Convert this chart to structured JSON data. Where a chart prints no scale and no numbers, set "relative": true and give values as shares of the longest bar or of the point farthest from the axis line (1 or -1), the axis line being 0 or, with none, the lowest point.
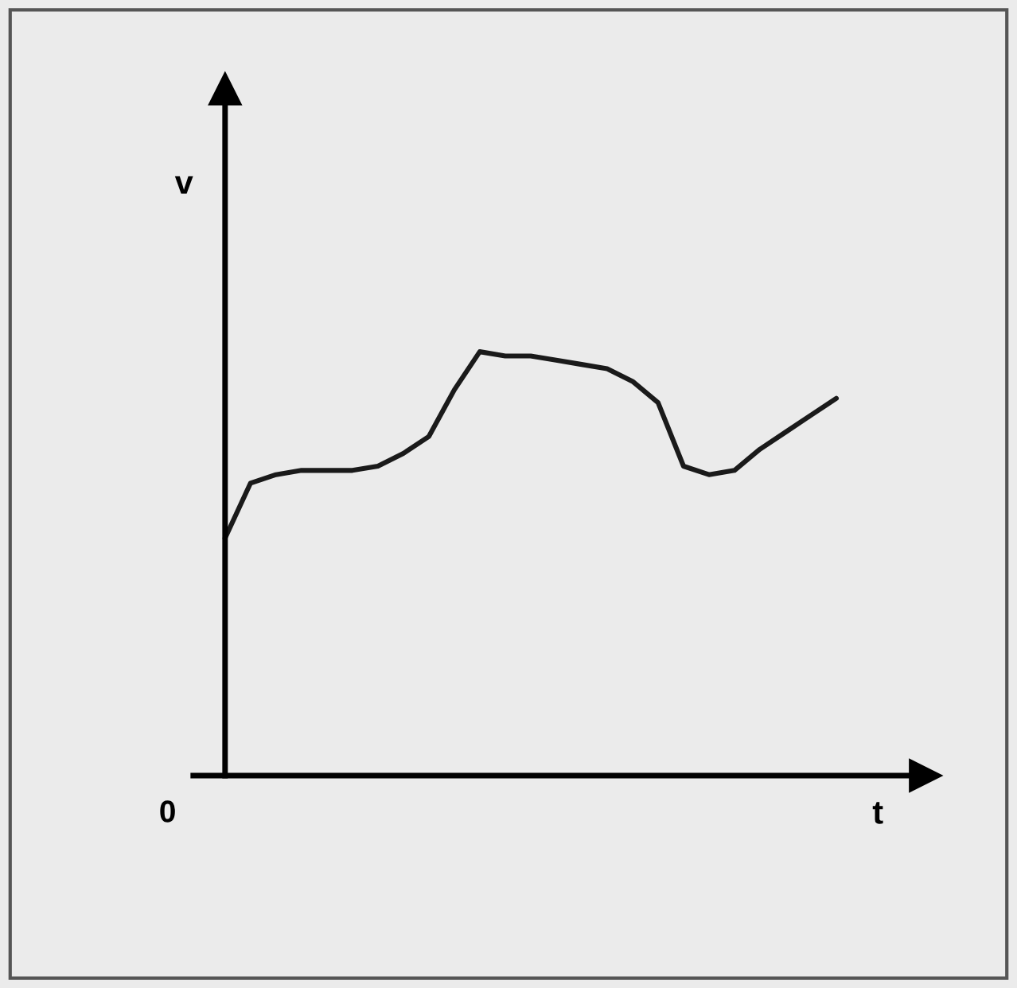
{
  "chart_data": {
    "type": "line",
    "relative": true,
    "xlabel": "t",
    "ylabel": "v",
    "annotations": [
      "0"
    ],
    "categories": [
      null,
      null,
      null,
      null,
      null,
      null,
      null,
      null,
      null,
      null,
      null,
      null,
      null,
      null,
      null,
      null,
      null,
      null,
      null,
      null,
      null,
      null,
      null,
      null,
      null
    ],
    "series": [
      {
        "color": "#1a1a1a",
        "values": [
          0.56,
          0.69,
          0.71,
          0.72,
          0.72,
          0.72,
          0.73,
          0.76,
          0.8,
          0.91,
          1.0,
          0.99,
          0.99,
          0.98,
          0.97,
          0.96,
          0.93,
          0.88,
          0.73,
          0.71,
          0.72,
          0.77,
          0.81,
          0.85,
          0.89
        ]
      }
    ],
    "grid": false,
    "legend": false,
    "marker": "none",
    "line_style": "solid"
  }
}
